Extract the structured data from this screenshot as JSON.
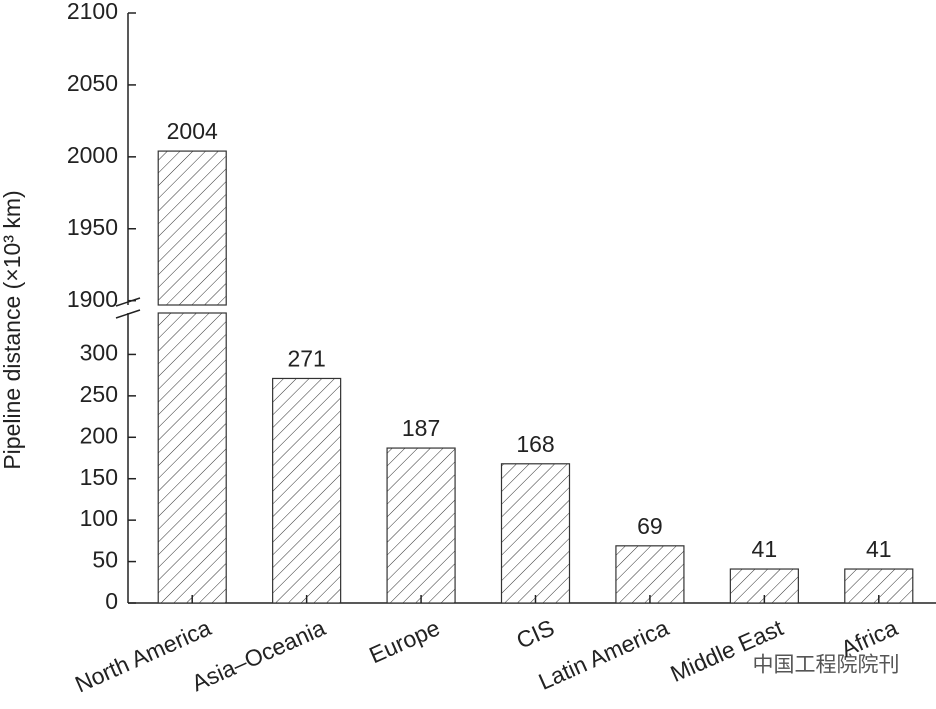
{
  "chart_data": {
    "type": "bar",
    "ylabel": "Pipeline distance (×10³ km)",
    "categories": [
      "North America",
      "Asia–Oceania",
      "Europe",
      "CIS",
      "Latin America",
      "Middle East",
      "Africa"
    ],
    "values": [
      2004,
      271,
      187,
      168,
      69,
      41,
      41
    ],
    "color": "#333333",
    "hatch": true,
    "ylim": [
      0,
      2100
    ],
    "ybreak": [
      350,
      1897
    ],
    "yticks": [
      0,
      50,
      100,
      150,
      200,
      250,
      300,
      1900,
      1950,
      2000,
      2050,
      2100
    ],
    "watermark": "中国工程院院刊"
  }
}
